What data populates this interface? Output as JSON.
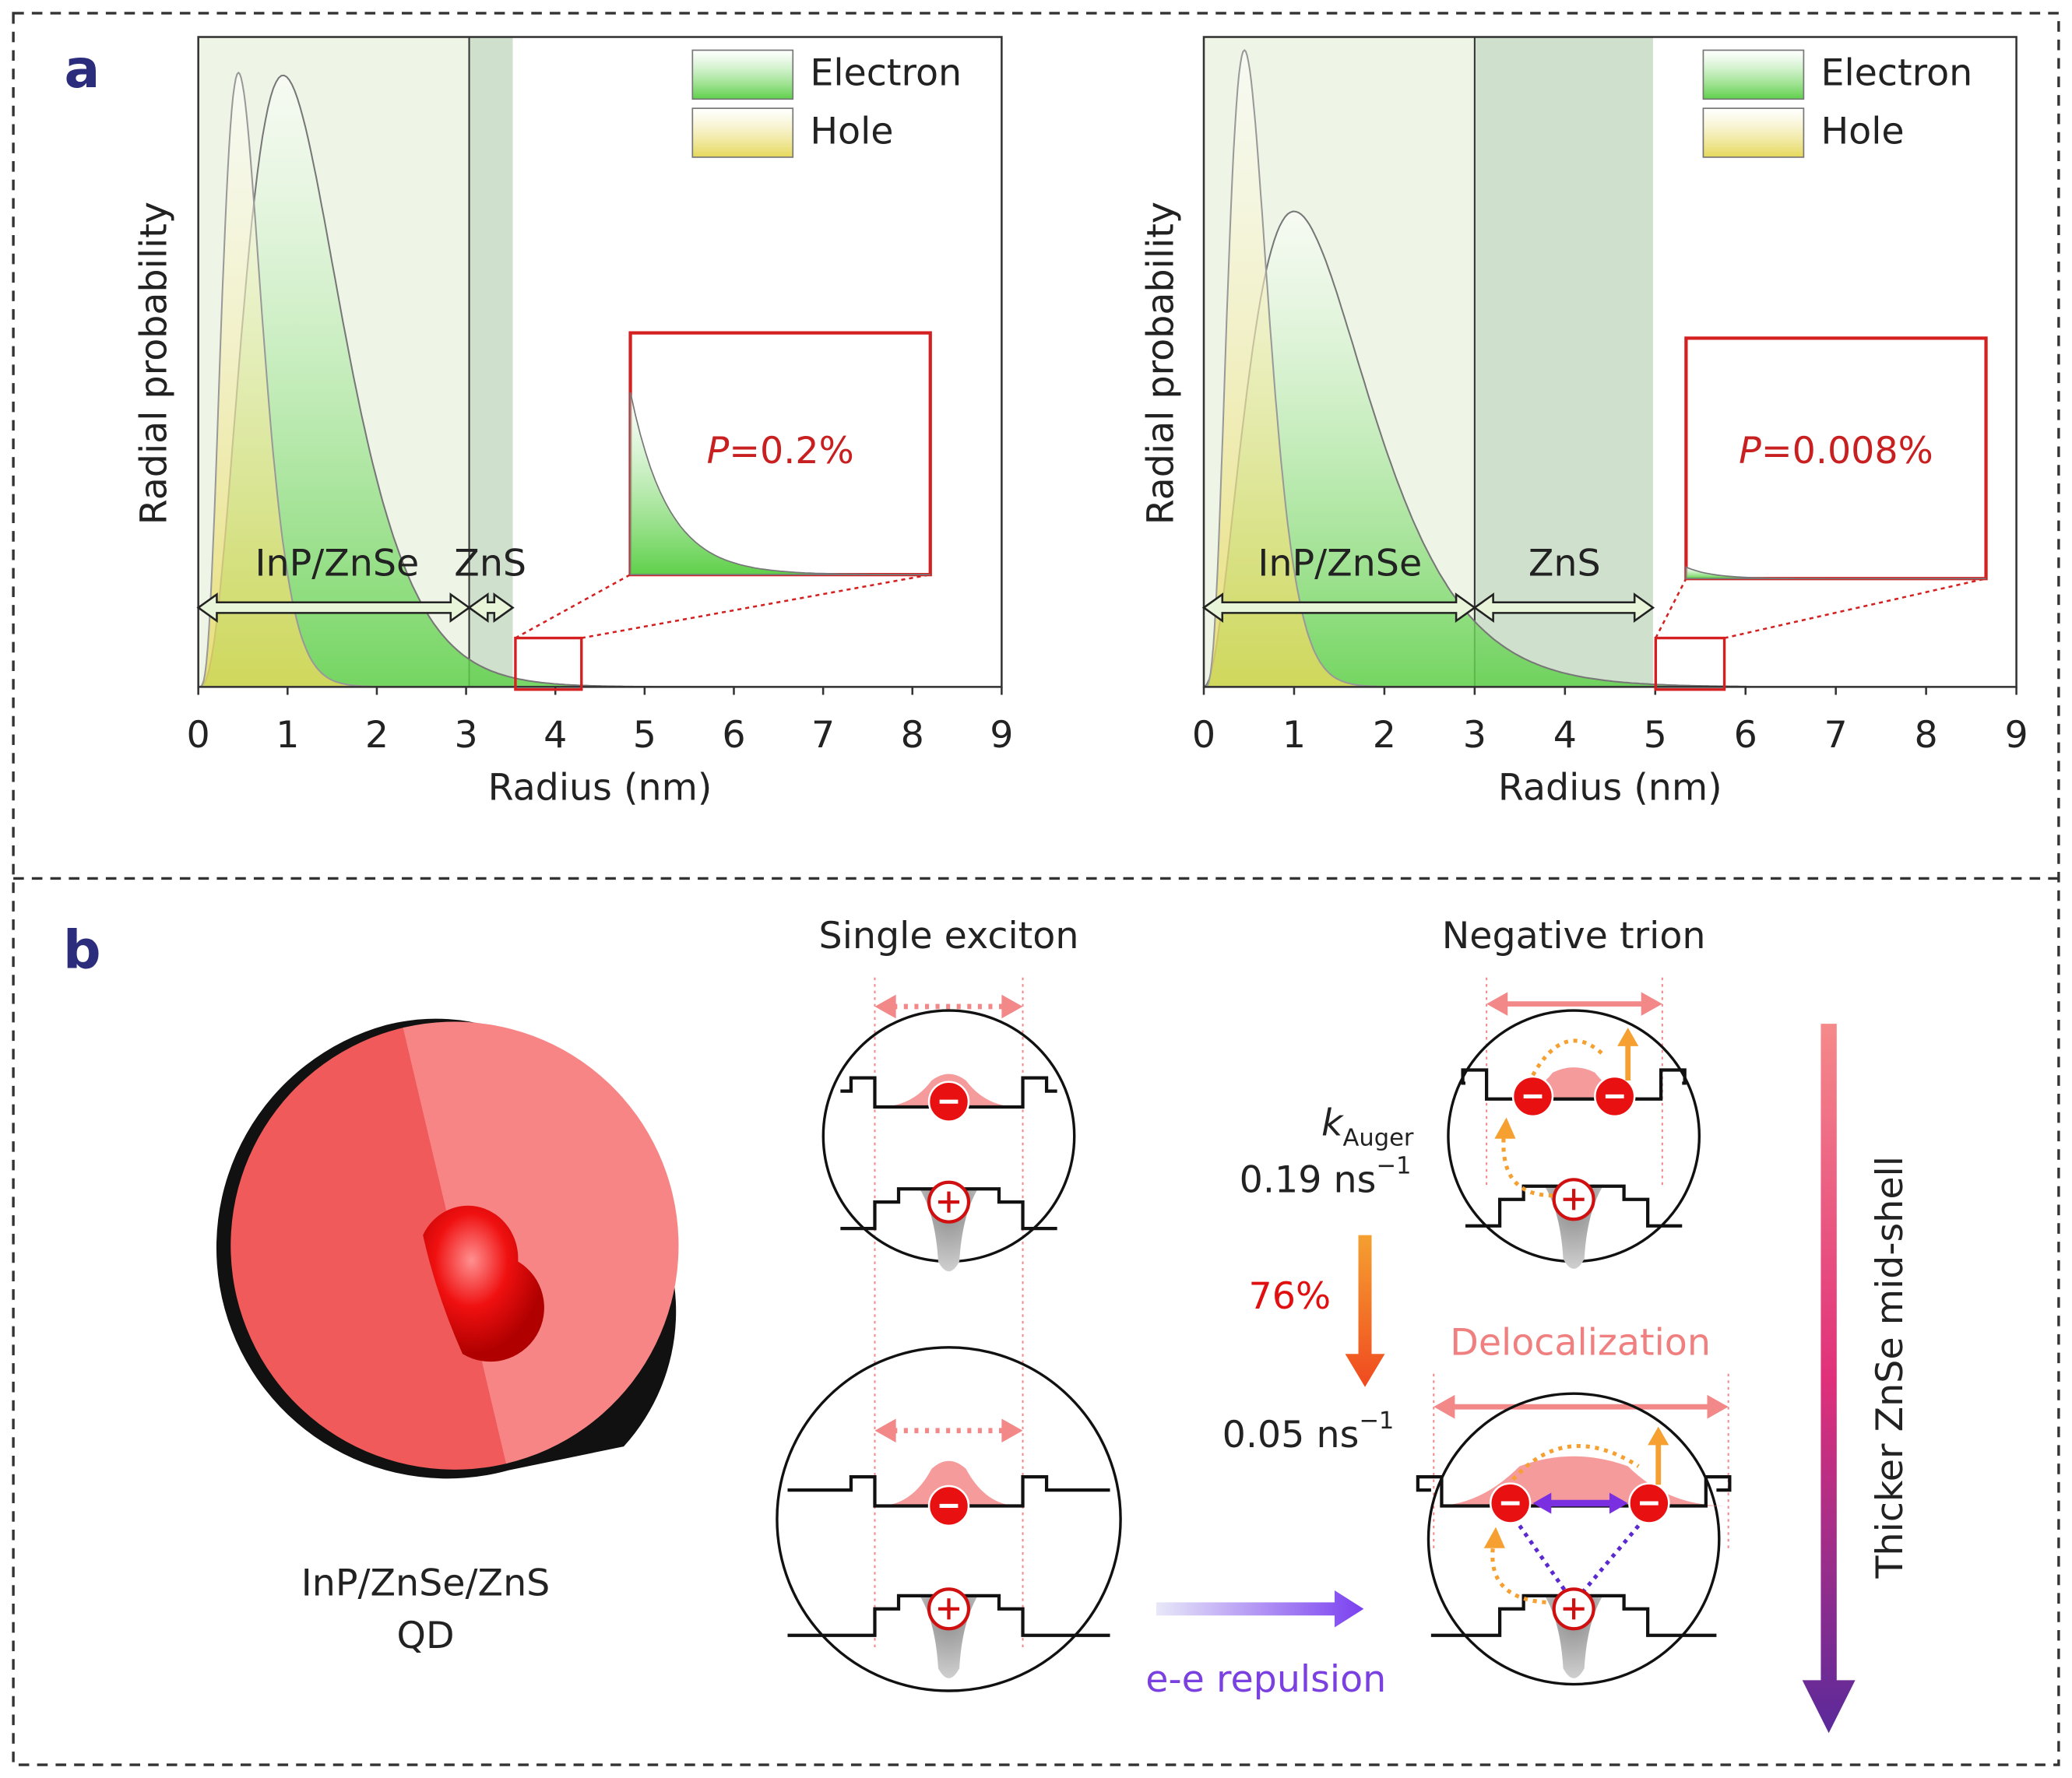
{
  "panel_a": {
    "label": "a",
    "charts": [
      {
        "xlim": [
          0,
          9
        ],
        "xticks": [
          0,
          1,
          2,
          3,
          4,
          5,
          6,
          7,
          8,
          9
        ],
        "xlabel": "Radius (nm)",
        "ylabel": "Radial probability",
        "legend": [
          {
            "name": "Electron",
            "color": "#5fd04a"
          },
          {
            "name": "Hole",
            "color": "#e6d85a"
          }
        ],
        "regions": [
          "InP/ZnSe",
          "ZnS"
        ],
        "inset": {
          "symbol": "P",
          "text": "=0.2%"
        }
      },
      {
        "xlim": [
          0,
          9
        ],
        "xticks": [
          0,
          1,
          2,
          3,
          4,
          5,
          6,
          7,
          8,
          9
        ],
        "xlabel": "Radius (nm)",
        "ylabel": "Radial probability",
        "legend": [
          {
            "name": "Electron",
            "color": "#5fd04a"
          },
          {
            "name": "Hole",
            "color": "#e6d85a"
          }
        ],
        "regions": [
          "InP/ZnSe",
          "ZnS"
        ],
        "inset": {
          "symbol": "P",
          "text": "=0.008%"
        }
      }
    ]
  },
  "panel_b": {
    "label": "b",
    "qd_label": [
      "InP/ZnSe/ZnS",
      "QD"
    ],
    "single_exciton": "Single exciton",
    "negative_trion": "Negative trion",
    "k_symbol": "k",
    "k_subscript": "Auger",
    "rates": [
      {
        "value": "0.19 ns",
        "superscript": "−1"
      },
      {
        "value": "0.05 ns",
        "superscript": "−1"
      }
    ],
    "percent": "76%",
    "delocalization": "Delocalization",
    "repulsion": "e-e repulsion",
    "side_label": "Thicker ZnSe mid-shell"
  }
}
